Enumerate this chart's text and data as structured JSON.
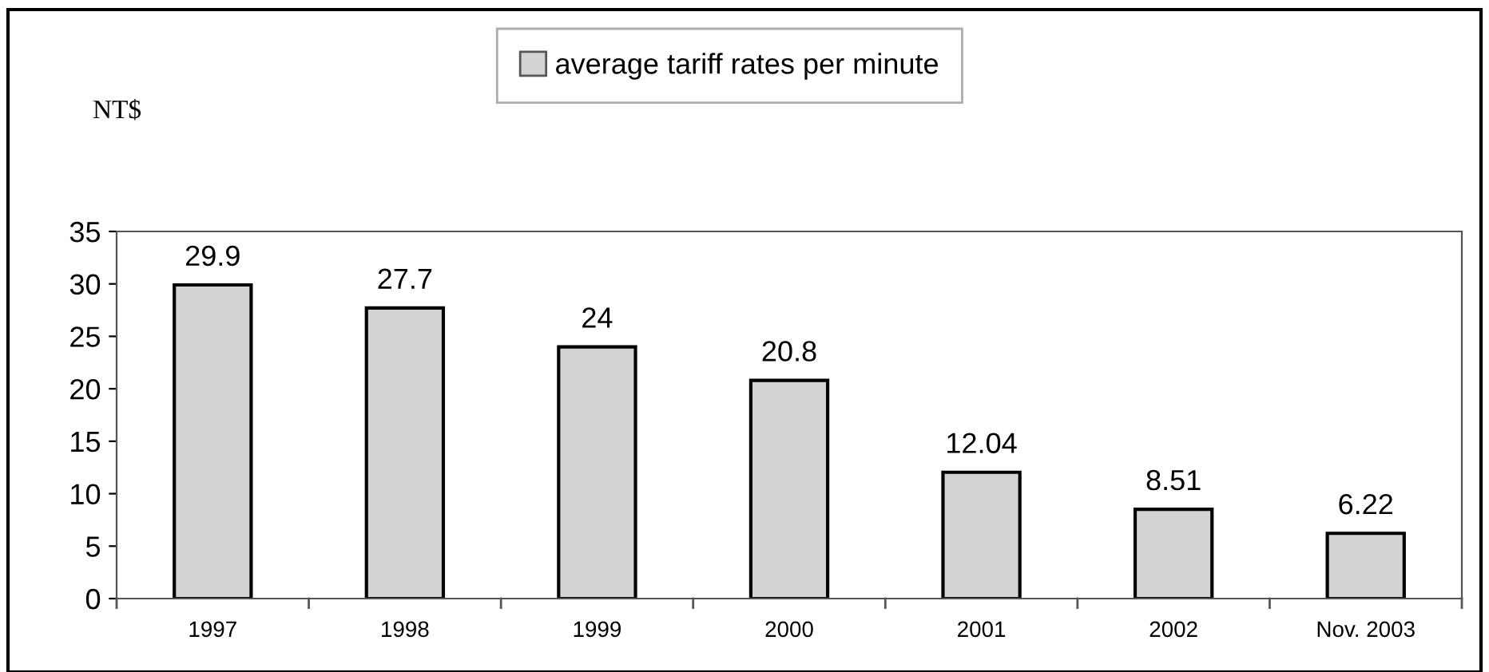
{
  "chart_data": {
    "type": "bar",
    "ylabel": "NT$",
    "categories": [
      "1997",
      "1998",
      "1999",
      "2000",
      "2001",
      "2002",
      "Nov. 2003"
    ],
    "series": [
      {
        "name": "average tariff rates per minute",
        "color": "#d3d3d3",
        "values": [
          29.9,
          27.7,
          24,
          20.8,
          12.04,
          8.51,
          6.22
        ]
      }
    ],
    "ylim": [
      0,
      35
    ],
    "yticks": [
      0,
      5,
      10,
      15,
      20,
      25,
      30,
      35
    ],
    "data_labels": true,
    "legend": "top",
    "grid": false
  }
}
